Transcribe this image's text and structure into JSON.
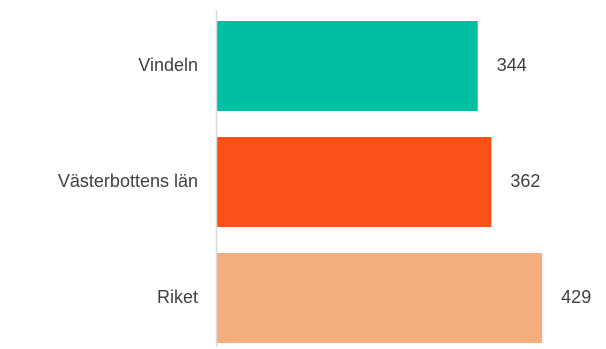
{
  "chart_data": {
    "type": "bar",
    "orientation": "horizontal",
    "title": "",
    "xlabel": "",
    "ylabel": "",
    "categories": [
      "Vindeln",
      "Västerbottens län",
      "Riket"
    ],
    "values": [
      344,
      362,
      429
    ],
    "value_labels": [
      "344",
      "362",
      "429"
    ],
    "colors": [
      "#00BFA5",
      "#FA5118",
      "#F4AE7E"
    ],
    "xlim": [
      0,
      500
    ],
    "grid": false,
    "legend": "none"
  }
}
